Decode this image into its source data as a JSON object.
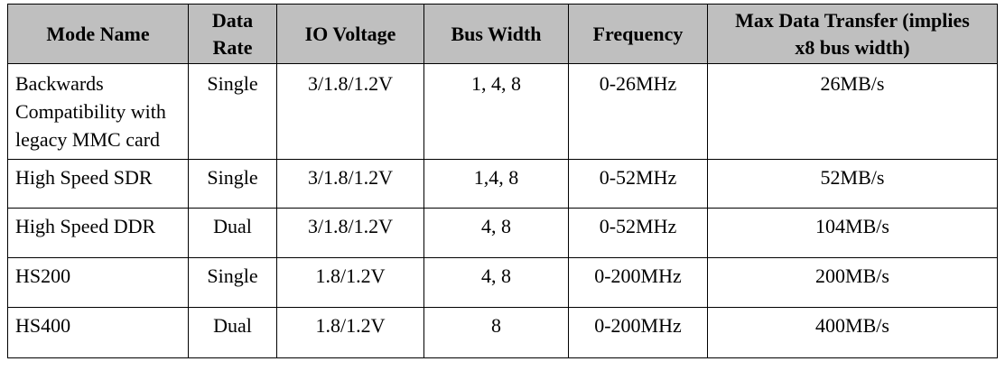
{
  "table": {
    "headers": [
      "Mode Name",
      "Data Rate",
      "IO Voltage",
      "Bus Width",
      "Frequency",
      "Max Data Transfer (implies x8 bus width)"
    ],
    "rows": [
      [
        "Backwards Compatibility with legacy MMC card",
        "Single",
        "3/1.8/1.2V",
        "1, 4, 8",
        "0-26MHz",
        "26MB/s"
      ],
      [
        "High Speed SDR",
        "Single",
        "3/1.8/1.2V",
        "1,4, 8",
        "0-52MHz",
        "52MB/s"
      ],
      [
        "High Speed DDR",
        "Dual",
        "3/1.8/1.2V",
        "4, 8",
        "0-52MHz",
        "104MB/s"
      ],
      [
        "HS200",
        "Single",
        "1.8/1.2V",
        "4, 8",
        "0-200MHz",
        "200MB/s"
      ],
      [
        "HS400",
        "Dual",
        "1.8/1.2V",
        "8",
        "0-200MHz",
        "400MB/s"
      ]
    ]
  },
  "colors": {
    "header_background": "#bfbfbf",
    "border": "#000000"
  }
}
